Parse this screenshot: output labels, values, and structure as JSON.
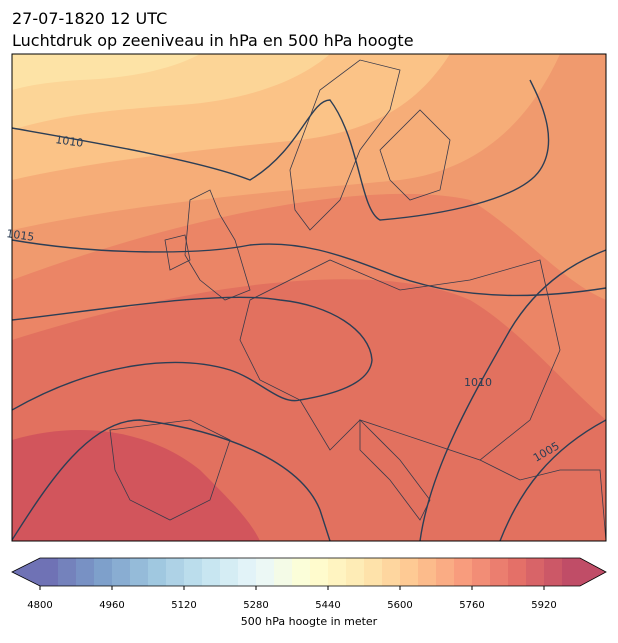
{
  "header": {
    "title_line1": "27-07-1820 12 UTC",
    "title_line2": "Luchtdruk op zeeniveau in hPa en 500 hPa hoogte"
  },
  "map": {
    "contour_labels": [
      "1010",
      "1015",
      "1010",
      "1005"
    ]
  },
  "colorbar": {
    "label": "500 hPa hoogte in meter",
    "lim": [
      4800,
      6000
    ],
    "ticks": [
      4800,
      4960,
      5120,
      5280,
      5440,
      5600,
      5760,
      5920
    ],
    "levels": 30,
    "colormap": [
      "#313695",
      "#4575b4",
      "#74add1",
      "#abd9e9",
      "#e0f3f8",
      "#ffffbf",
      "#fee090",
      "#fdae61",
      "#f46d43",
      "#d73027",
      "#a50026"
    ]
  }
}
